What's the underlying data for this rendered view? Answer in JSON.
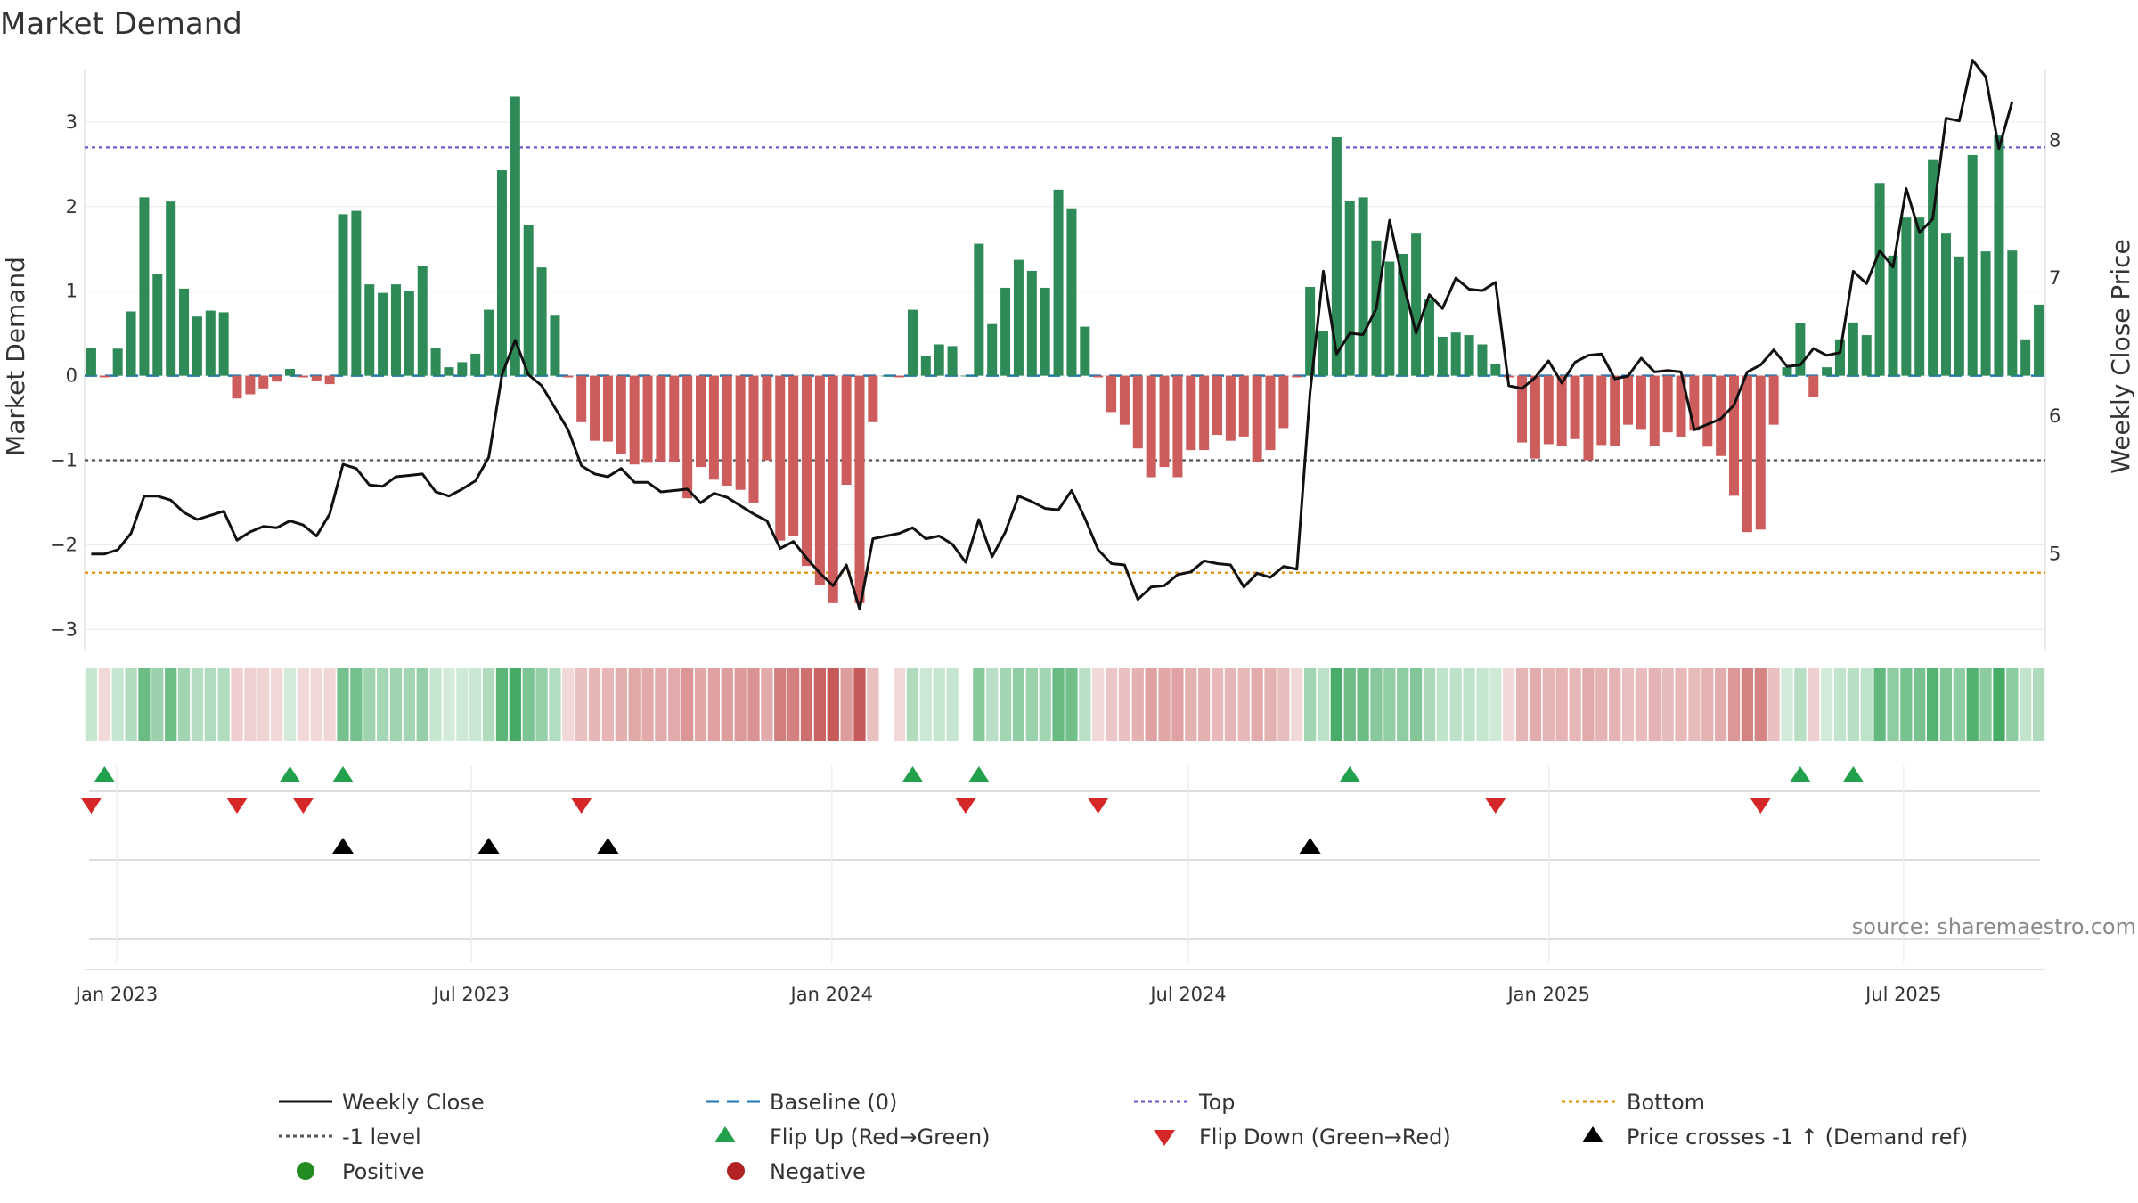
{
  "chart_data": {
    "type": "bar",
    "title": "Market Demand",
    "ylabel": "Market Demand",
    "y2label": "Weekly Close Price",
    "ylim": [
      -3.25,
      3.6
    ],
    "y2lim": [
      4.3,
      8.5
    ],
    "yticks": [
      -3,
      -2,
      -1,
      0,
      1,
      2,
      3
    ],
    "y2ticks": [
      5,
      6,
      7,
      8
    ],
    "date_start": "2022-12-19",
    "date_end": "2025-09-08",
    "xticks": [
      {
        "label": "Jan 2023",
        "date": "2023-01-01"
      },
      {
        "label": "Jul 2023",
        "date": "2023-07-01"
      },
      {
        "label": "Jan 2024",
        "date": "2024-01-01"
      },
      {
        "label": "Jul 2024",
        "date": "2024-07-01"
      },
      {
        "label": "Jan 2025",
        "date": "2025-01-01"
      },
      {
        "label": "Jul 2025",
        "date": "2025-07-01"
      }
    ],
    "reference_lines": {
      "baseline": 0,
      "top": 2.7,
      "minus_one": -1,
      "bottom": -2.33
    },
    "demand": [
      0.33,
      -0.02,
      0.32,
      0.76,
      2.11,
      1.2,
      2.06,
      1.03,
      0.7,
      0.77,
      0.75,
      -0.27,
      -0.22,
      -0.15,
      -0.07,
      0.08,
      -0.02,
      -0.06,
      -0.1,
      1.91,
      1.95,
      1.08,
      0.98,
      1.08,
      1.0,
      1.3,
      0.33,
      0.1,
      0.16,
      0.26,
      0.78,
      2.43,
      3.3,
      1.78,
      1.28,
      0.71,
      -0.02,
      -0.55,
      -0.77,
      -0.78,
      -0.93,
      -1.05,
      -1.03,
      -1.02,
      -1.02,
      -1.45,
      -1.08,
      -1.23,
      -1.3,
      -1.35,
      -1.5,
      -1.0,
      -1.95,
      -1.9,
      -2.25,
      -2.48,
      -2.69,
      -1.29,
      -2.69,
      -0.55,
      0.0,
      -0.02,
      0.78,
      0.23,
      0.37,
      0.35,
      0.0,
      1.56,
      0.61,
      1.04,
      1.37,
      1.24,
      1.04,
      2.2,
      1.98,
      0.58,
      -0.02,
      -0.43,
      -0.58,
      -0.86,
      -1.2,
      -1.08,
      -1.2,
      -0.88,
      -0.88,
      -0.7,
      -0.77,
      -0.72,
      -1.02,
      -0.88,
      -0.62,
      -0.02,
      1.05,
      0.53,
      2.82,
      2.07,
      2.11,
      1.6,
      1.35,
      1.44,
      1.68,
      0.9,
      0.46,
      0.51,
      0.48,
      0.37,
      0.14,
      -0.02,
      -0.79,
      -0.98,
      -0.81,
      -0.83,
      -0.75,
      -1.0,
      -0.82,
      -0.83,
      -0.58,
      -0.63,
      -0.83,
      -0.67,
      -0.72,
      -0.65,
      -0.84,
      -0.95,
      -1.42,
      -1.85,
      -1.82,
      -0.58,
      0.1,
      0.62,
      -0.25,
      0.1,
      0.43,
      0.63,
      0.48,
      2.28,
      1.42,
      1.87,
      1.87,
      2.56,
      1.68,
      1.41,
      2.61,
      1.47,
      2.84,
      1.48,
      0.43,
      0.84
    ],
    "close": [
      5.0,
      5.0,
      5.03,
      5.15,
      5.42,
      5.42,
      5.39,
      5.3,
      5.25,
      5.28,
      5.31,
      5.1,
      5.16,
      5.2,
      5.19,
      5.24,
      5.21,
      5.13,
      5.29,
      5.65,
      5.62,
      5.5,
      5.49,
      5.56,
      5.57,
      5.58,
      5.45,
      5.42,
      5.47,
      5.53,
      5.7,
      6.3,
      6.55,
      6.3,
      6.22,
      6.06,
      5.9,
      5.64,
      5.58,
      5.56,
      5.62,
      5.52,
      5.52,
      5.45,
      5.46,
      5.47,
      5.37,
      5.44,
      5.41,
      5.35,
      5.29,
      5.24,
      5.04,
      5.09,
      4.97,
      4.86,
      4.77,
      4.92,
      4.6,
      5.11,
      5.13,
      5.15,
      5.19,
      5.11,
      5.13,
      5.07,
      4.94,
      5.25,
      4.98,
      5.16,
      5.42,
      5.38,
      5.33,
      5.32,
      5.46,
      5.26,
      5.03,
      4.93,
      4.92,
      4.67,
      4.76,
      4.77,
      4.85,
      4.87,
      4.95,
      4.93,
      4.92,
      4.76,
      4.86,
      4.83,
      4.91,
      4.89,
      6.17,
      7.05,
      6.45,
      6.6,
      6.59,
      6.78,
      7.42,
      6.98,
      6.6,
      6.88,
      6.78,
      7.0,
      6.92,
      6.91,
      6.97,
      6.22,
      6.2,
      6.28,
      6.4,
      6.24,
      6.39,
      6.44,
      6.45,
      6.27,
      6.29,
      6.42,
      6.32,
      6.33,
      6.32,
      5.9,
      5.94,
      5.98,
      6.08,
      6.32,
      6.37,
      6.48,
      6.36,
      6.37,
      6.49,
      6.44,
      6.46,
      7.05,
      6.96,
      7.2,
      7.08,
      7.65,
      7.33,
      7.43,
      8.16,
      8.14,
      8.58,
      8.46,
      7.94,
      8.28
    ],
    "flip_up_weeks": [
      1,
      15,
      19,
      62,
      67,
      95,
      129,
      133
    ],
    "flip_down_weeks": [
      0,
      11,
      16,
      37,
      66,
      76,
      106,
      126
    ],
    "price_cross_weeks": [
      19,
      30,
      39,
      92
    ],
    "source": "source: sharemaestro.com",
    "legend": [
      {
        "label": "Weekly Close"
      },
      {
        "label": "Baseline (0)"
      },
      {
        "label": "Top"
      },
      {
        "label": "Bottom"
      },
      {
        "label": "-1 level"
      },
      {
        "label": "Flip Up (Red→Green)"
      },
      {
        "label": "Flip Down (Green→Red)"
      },
      {
        "label": "Price crosses -1 ↑ (Demand ref)"
      },
      {
        "label": "Positive"
      },
      {
        "label": "Negative"
      }
    ]
  },
  "colors": {
    "positive": "#2e8b57",
    "negative": "#cd5c5c",
    "price_line": "#111111",
    "baseline": "#1f77b4",
    "top": "#6a5acd",
    "bottom": "#e08b00",
    "minus_one": "#555555",
    "flip_up": "#22a04b",
    "flip_down": "#d62728",
    "price_cross": "#000000",
    "legend_positive": "#228b22",
    "legend_negative": "#b22222"
  }
}
